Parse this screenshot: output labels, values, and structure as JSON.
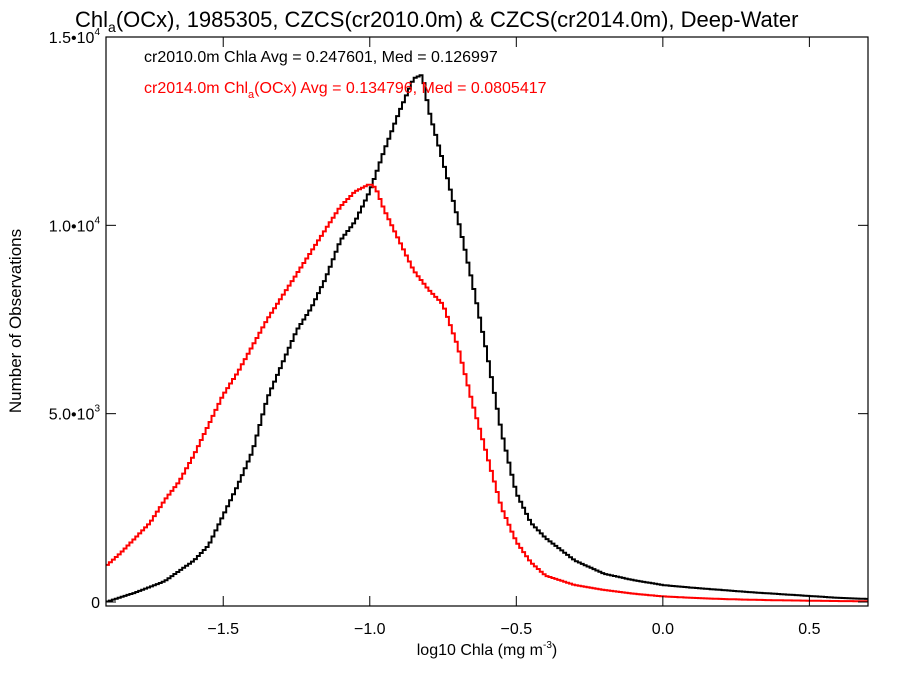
{
  "chart_data": {
    "type": "line",
    "title": {
      "pre": "Chl",
      "sub": "a",
      "post": "(OCx), 1985305, CZCS(cr2010.0m) & CZCS(cr2014.0m), Deep-Water"
    },
    "xlabel": {
      "pre": "log10 Chla (mg m",
      "sup": "-3",
      "post": ")"
    },
    "ylabel": "Number of Observations",
    "xlim": [
      -1.9,
      0.7
    ],
    "ylim": [
      0,
      15000
    ],
    "x_ticks": [
      {
        "value": -1.5,
        "label": "−1.5"
      },
      {
        "value": -1.0,
        "label": "−1.0"
      },
      {
        "value": -0.5,
        "label": "−0.5"
      },
      {
        "value": 0.0,
        "label": "0.0"
      },
      {
        "value": 0.5,
        "label": "0.5"
      }
    ],
    "y_ticks": [
      {
        "value": 0,
        "mant": "0",
        "exp": ""
      },
      {
        "value": 5000,
        "mant": "5.0•10",
        "exp": "3"
      },
      {
        "value": 10000,
        "mant": "1.0•10",
        "exp": "4"
      },
      {
        "value": 15000,
        "mant": "1.5•10",
        "exp": "4"
      }
    ],
    "grid": false,
    "legend_position": "top-left",
    "annotations": [
      {
        "color": "#000000",
        "pre": "cr2010.0m Chla Avg = 0.247601, Med = 0.126997",
        "sub": "",
        "post": ""
      },
      {
        "color": "#ff0000",
        "pre": "cr2014.0m Chl",
        "sub": "a",
        "post": "(OCx) Avg = 0.134796, Med = 0.0805417"
      }
    ],
    "series": [
      {
        "color": "#000000",
        "x": [
          -1.9,
          -1.8,
          -1.7,
          -1.6,
          -1.55,
          -1.5,
          -1.45,
          -1.4,
          -1.35,
          -1.3,
          -1.25,
          -1.2,
          -1.15,
          -1.1,
          -1.05,
          -1.0,
          -0.95,
          -0.9,
          -0.85,
          -0.82,
          -0.8,
          -0.75,
          -0.7,
          -0.65,
          -0.6,
          -0.55,
          -0.5,
          -0.45,
          -0.4,
          -0.3,
          -0.2,
          -0.1,
          0.0,
          0.1,
          0.2,
          0.3,
          0.4,
          0.5,
          0.6,
          0.7
        ],
        "y": [
          0,
          250,
          550,
          1100,
          1500,
          2300,
          3100,
          4000,
          5400,
          6300,
          7200,
          7800,
          8600,
          9600,
          10100,
          10900,
          12000,
          13000,
          13900,
          14000,
          13100,
          11700,
          10200,
          8500,
          6600,
          4500,
          2900,
          2100,
          1700,
          1100,
          750,
          580,
          450,
          380,
          320,
          260,
          210,
          160,
          110,
          80
        ]
      },
      {
        "color": "#ff0000",
        "x": [
          -1.9,
          -1.85,
          -1.8,
          -1.75,
          -1.7,
          -1.65,
          -1.6,
          -1.55,
          -1.5,
          -1.45,
          -1.4,
          -1.35,
          -1.3,
          -1.25,
          -1.2,
          -1.15,
          -1.1,
          -1.05,
          -1.0,
          -0.98,
          -0.95,
          -0.9,
          -0.85,
          -0.8,
          -0.75,
          -0.7,
          -0.65,
          -0.6,
          -0.55,
          -0.5,
          -0.45,
          -0.4,
          -0.3,
          -0.2,
          -0.1,
          0.0,
          0.1,
          0.2,
          0.3,
          0.4,
          0.5,
          0.6,
          0.7
        ],
        "y": [
          950,
          1300,
          1700,
          2100,
          2700,
          3200,
          3900,
          4700,
          5500,
          6100,
          6800,
          7500,
          8100,
          8700,
          9300,
          9900,
          10500,
          10900,
          11100,
          11000,
          10400,
          9600,
          8800,
          8300,
          7900,
          6800,
          5300,
          3900,
          2500,
          1600,
          1050,
          700,
          450,
          320,
          220,
          150,
          110,
          80,
          60,
          45,
          35,
          25,
          20
        ]
      }
    ]
  }
}
